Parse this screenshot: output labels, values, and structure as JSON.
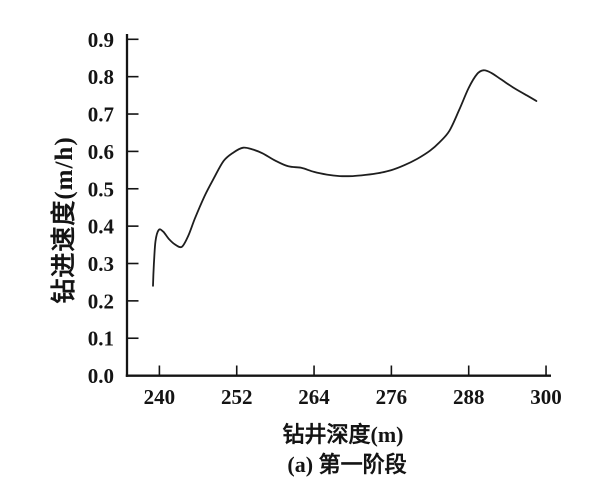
{
  "figure": {
    "background": "#ffffff",
    "ink_color": "#141414"
  },
  "chart_data": {
    "type": "line",
    "title": "",
    "xlabel": "钻井深度(m)",
    "ylabel": "钻进速度(m/h)",
    "caption": "(a) 第一阶段",
    "x_ticks": [
      240,
      252,
      264,
      276,
      288,
      300
    ],
    "y_ticks": [
      0.0,
      0.1,
      0.2,
      0.3,
      0.4,
      0.5,
      0.6,
      0.7,
      0.8,
      0.9
    ],
    "xlim": [
      235,
      301
    ],
    "ylim": [
      0.0,
      0.9
    ],
    "grid": false,
    "legend": "none",
    "series": [
      {
        "name": "钻进速度",
        "color": "#1e1e1e",
        "x": [
          239.0,
          239.15,
          239.4,
          239.9,
          240.6,
          241.5,
          242.5,
          243.5,
          244.5,
          245.5,
          247.0,
          248.5,
          250.0,
          251.5,
          253.0,
          254.5,
          256.0,
          258.0,
          260.0,
          262.0,
          264.0,
          266.0,
          268.0,
          270.0,
          272.0,
          274.0,
          276.0,
          278.0,
          280.0,
          282.0,
          283.5,
          285.0,
          286.5,
          288.0,
          289.3,
          290.3,
          291.5,
          293.0,
          295.0,
          297.0,
          298.5
        ],
        "y": [
          0.24,
          0.3,
          0.36,
          0.39,
          0.385,
          0.365,
          0.35,
          0.345,
          0.375,
          0.42,
          0.48,
          0.53,
          0.575,
          0.597,
          0.61,
          0.605,
          0.595,
          0.575,
          0.56,
          0.556,
          0.545,
          0.538,
          0.534,
          0.534,
          0.537,
          0.542,
          0.55,
          0.563,
          0.58,
          0.602,
          0.625,
          0.655,
          0.71,
          0.77,
          0.807,
          0.817,
          0.81,
          0.793,
          0.77,
          0.75,
          0.735
        ]
      }
    ]
  }
}
